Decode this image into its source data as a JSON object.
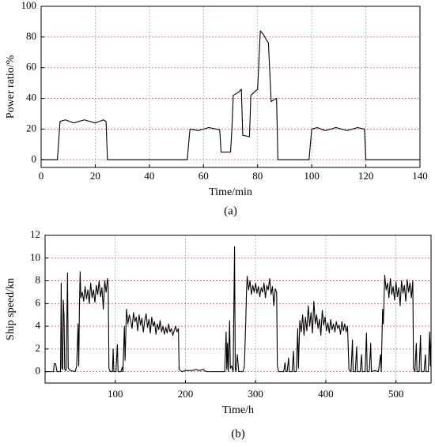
{
  "chart_data": [
    {
      "type": "line",
      "caption": "(a)",
      "xlabel": "Time/min",
      "ylabel": "Power ratio/%",
      "xlim": [
        0,
        140
      ],
      "xticks": [
        0,
        20,
        40,
        60,
        80,
        100,
        120,
        140
      ],
      "ylim": [
        -5,
        100
      ],
      "yticks": [
        0,
        20,
        40,
        60,
        80,
        100
      ],
      "grid": true,
      "color": "#000000",
      "x": [
        0,
        6,
        7,
        9,
        12,
        16,
        20,
        23,
        24,
        24.5,
        54,
        55,
        58,
        62,
        66,
        66.5,
        70,
        70.5,
        71,
        73,
        74,
        74.5,
        77,
        77.5,
        80,
        81,
        82,
        84,
        85,
        87,
        87.5,
        99,
        100,
        102,
        105,
        109,
        113,
        117,
        119.5,
        120,
        140
      ],
      "values": [
        0,
        0,
        25,
        26,
        24,
        26,
        24,
        26,
        25,
        0,
        0,
        20,
        19,
        21,
        19.5,
        5,
        5,
        20,
        42,
        44,
        46,
        16,
        15,
        42,
        46,
        84,
        82,
        76,
        38,
        40,
        0,
        0,
        20,
        21,
        19,
        21,
        19,
        21,
        20,
        0,
        0
      ]
    },
    {
      "type": "line",
      "caption": "(b)",
      "xlabel": "Time/h",
      "ylabel": "Ship speed/kn",
      "xlim": [
        0,
        550
      ],
      "xticks": [
        100,
        200,
        300,
        400,
        500
      ],
      "ylim": [
        -1,
        12
      ],
      "yticks": [
        0,
        2,
        4,
        6,
        8,
        10,
        12
      ],
      "grid": true,
      "color": "#000000",
      "x": [
        0,
        12,
        13,
        15,
        17,
        22,
        23,
        24,
        25,
        26,
        27,
        28,
        30,
        32,
        33,
        36,
        43,
        45,
        47,
        48,
        49,
        50,
        51,
        53,
        55,
        57,
        59,
        61,
        63,
        65,
        67,
        69,
        71,
        73,
        75,
        77,
        79,
        81,
        83,
        85,
        87,
        89,
        90,
        91,
        93,
        96,
        97,
        98,
        101,
        103,
        104,
        108,
        110,
        111,
        113,
        114,
        116,
        118,
        120,
        122,
        124,
        126,
        128,
        130,
        132,
        134,
        136,
        138,
        140,
        142,
        144,
        146,
        148,
        150,
        152,
        154,
        156,
        158,
        160,
        162,
        164,
        166,
        168,
        170,
        172,
        174,
        176,
        178,
        180,
        182,
        184,
        186,
        188,
        190,
        191,
        195,
        200,
        210,
        215,
        220,
        225,
        230,
        250,
        256,
        258,
        259,
        260,
        261,
        263,
        264,
        266,
        268,
        270,
        271,
        272,
        274,
        276,
        282,
        284,
        286,
        287,
        288,
        290,
        292,
        294,
        296,
        298,
        300,
        302,
        304,
        306,
        308,
        310,
        312,
        314,
        316,
        318,
        320,
        322,
        324,
        326,
        328,
        330,
        331,
        333,
        340,
        342,
        343,
        345,
        347,
        348,
        352,
        354,
        355,
        358,
        360,
        361,
        363,
        365,
        367,
        369,
        371,
        373,
        375,
        377,
        379,
        381,
        383,
        385,
        387,
        389,
        391,
        393,
        395,
        397,
        399,
        401,
        403,
        405,
        407,
        409,
        411,
        413,
        415,
        417,
        419,
        421,
        423,
        425,
        427,
        429,
        431,
        433,
        436,
        438,
        439,
        442,
        444,
        445,
        449,
        451,
        452,
        456,
        458,
        459,
        462,
        464,
        465,
        470,
        475,
        478,
        479,
        481,
        482,
        484,
        486,
        488,
        490,
        492,
        494,
        496,
        498,
        500,
        502,
        504,
        506,
        508,
        510,
        512,
        514,
        516,
        518,
        520,
        522,
        524,
        525,
        527,
        529,
        530,
        533,
        535,
        536,
        540,
        542,
        543,
        546,
        548,
        549,
        550
      ],
      "values": [
        0,
        0,
        0.7,
        0.7,
        0,
        0,
        7.8,
        0.3,
        0.2,
        6.3,
        5,
        0.2,
        0.1,
        8.7,
        0.3,
        0.1,
        0,
        0.5,
        4.2,
        0.5,
        6,
        8.8,
        6.5,
        7,
        6.2,
        7.5,
        6.4,
        7.2,
        6,
        7.8,
        6.5,
        7.2,
        6.1,
        7.6,
        6.8,
        8,
        6.6,
        7.4,
        5.5,
        8,
        7,
        8.2,
        7.5,
        0.3,
        0,
        0,
        2,
        0,
        0,
        2.4,
        0,
        0,
        0.4,
        0,
        4,
        1,
        5.5,
        4.2,
        5,
        4.5,
        3.8,
        5.2,
        4.4,
        4.8,
        3.6,
        5,
        4.1,
        4.7,
        3.5,
        4.5,
        5.1,
        3.9,
        4.6,
        3.4,
        4.8,
        4,
        4.4,
        3.3,
        4.2,
        3.7,
        4.5,
        3.5,
        4,
        3.3,
        3.9,
        3.4,
        4.2,
        3.5,
        3.8,
        3.2,
        3.6,
        4,
        3.5,
        3.8,
        0.2,
        0,
        0.1,
        0.1,
        0.2,
        0.1,
        0.2,
        0,
        0,
        0,
        3.5,
        0.2,
        2.5,
        0,
        4.5,
        0.3,
        0.5,
        0,
        11,
        0.3,
        0,
        1.5,
        0,
        0,
        0.5,
        4.5,
        7,
        8.4,
        7.2,
        8,
        6.8,
        7.6,
        7,
        7.8,
        6.9,
        7.5,
        6.6,
        7.4,
        7,
        7.8,
        6.5,
        7.6,
        7.2,
        8.2,
        6.8,
        7.5,
        5.8,
        7.3,
        7,
        0.5,
        0,
        0,
        0.8,
        0,
        0,
        1.2,
        0,
        0,
        1.8,
        0,
        0,
        3.8,
        0.3,
        4.5,
        3.5,
        5,
        3.2,
        4.8,
        3.6,
        5.8,
        4,
        5.2,
        3.4,
        6.2,
        4.2,
        5,
        3.8,
        4.6,
        3.2,
        5.4,
        4.1,
        4.8,
        3.6,
        4.3,
        3.4,
        4.6,
        3.7,
        4.2,
        3.5,
        4.4,
        3.8,
        4.1,
        3.3,
        4.4,
        3.6,
        4.2,
        3.5,
        4,
        0.2,
        0,
        2.8,
        0,
        0,
        2.2,
        0,
        0,
        1.5,
        0,
        0,
        3.4,
        0,
        0,
        2.5,
        0,
        0.1,
        0,
        1.5,
        0,
        5.5,
        4.2,
        8.5,
        7.2,
        7.8,
        6.5,
        8.2,
        6.8,
        7.5,
        6.3,
        7.9,
        6.6,
        7.4,
        5.8,
        8,
        6.9,
        7.6,
        6.2,
        8.1,
        7,
        7.8,
        6.5,
        8,
        0.3,
        0,
        2.5,
        0,
        0,
        3.2,
        0,
        0,
        1.5,
        0,
        0,
        3.5,
        0.5,
        3
      ]
    }
  ]
}
